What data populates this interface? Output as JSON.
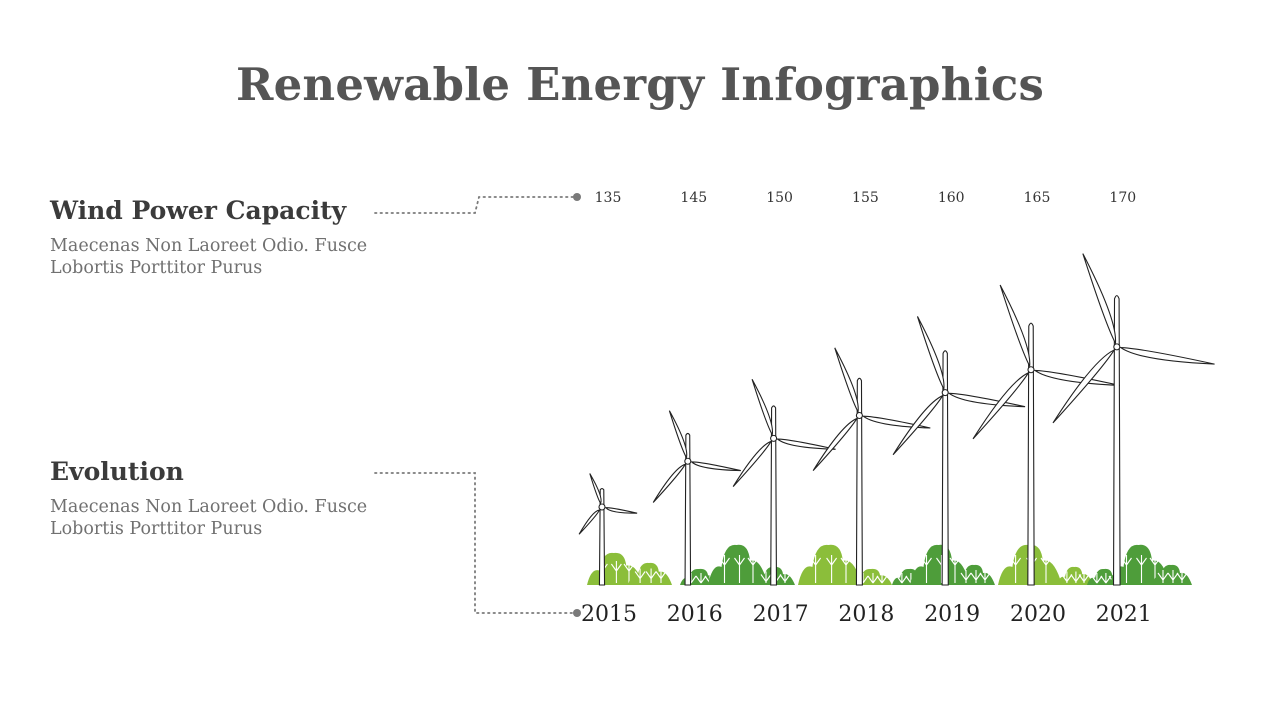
{
  "page": {
    "title": "Renewable Energy Infographics"
  },
  "blocks": {
    "wind": {
      "heading": "Wind Power Capacity",
      "description": "Maecenas Non Laoreet Odio. Fusce Lobortis Porttitor Purus"
    },
    "evolution": {
      "heading": "Evolution",
      "description": "Maecenas Non Laoreet Odio. Fusce Lobortis Porttitor Purus"
    }
  },
  "colors": {
    "title": "#555555",
    "heading": "#3b3b3b",
    "text": "#707070",
    "light_green": "#8bbe3a",
    "dark_green": "#4e9d3a",
    "connector": "#7a7a7a"
  },
  "chart_data": {
    "type": "bar",
    "categories": [
      "2015",
      "2016",
      "2017",
      "2018",
      "2019",
      "2020",
      "2021"
    ],
    "values": [
      135,
      145,
      150,
      155,
      160,
      165,
      170
    ],
    "title": "",
    "xlabel": "",
    "ylabel": "",
    "mark": "wind-turbine",
    "grid": false,
    "legend": "none"
  }
}
